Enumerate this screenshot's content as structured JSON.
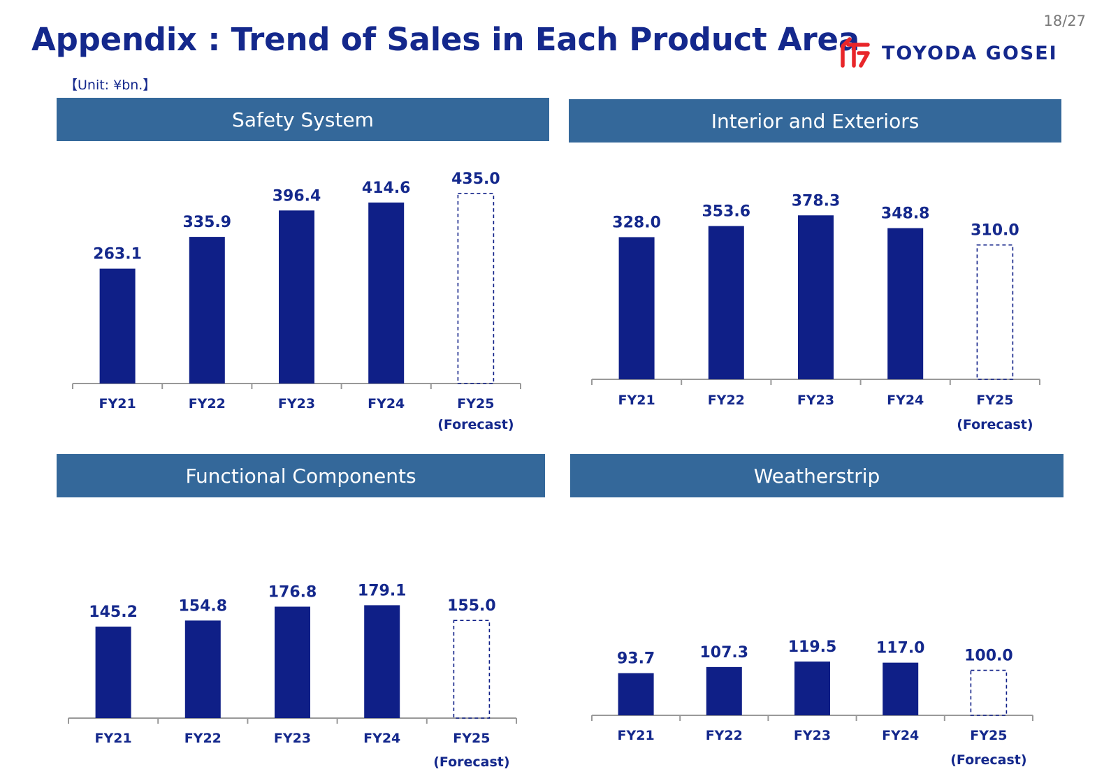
{
  "page": {
    "number": "18/27",
    "title": "Appendix : Trend of Sales in Each Product Area",
    "logo": {
      "text": "TOYODA GOSEI",
      "icon": "toyoda-gosei-logo-icon"
    },
    "unit": "【Unit: ¥bn.】"
  },
  "colors": {
    "bar": "#0f1f87",
    "forecast_border": "#0f1f87",
    "header_bg": "#34689a",
    "label": "#14288c",
    "axis": "#999999"
  },
  "chart_data": [
    {
      "type": "bar",
      "title": "Safety System",
      "categories": [
        "FY21",
        "FY22",
        "FY23",
        "FY24",
        "FY25"
      ],
      "category_sublabels": [
        "",
        "",
        "",
        "",
        "(Forecast)"
      ],
      "values": [
        263.1,
        335.9,
        396.4,
        414.6,
        435.0
      ],
      "value_labels": [
        "263.1",
        "335.9",
        "396.4",
        "414.6",
        "435.0"
      ],
      "forecast": [
        false,
        false,
        false,
        false,
        true
      ]
    },
    {
      "type": "bar",
      "title": "Interior and Exteriors",
      "categories": [
        "FY21",
        "FY22",
        "FY23",
        "FY24",
        "FY25"
      ],
      "category_sublabels": [
        "",
        "",
        "",
        "",
        "(Forecast)"
      ],
      "values": [
        328.0,
        353.6,
        378.3,
        348.8,
        310.0
      ],
      "value_labels": [
        "328.0",
        "353.6",
        "378.3",
        "348.8",
        "310.0"
      ],
      "forecast": [
        false,
        false,
        false,
        false,
        true
      ]
    },
    {
      "type": "bar",
      "title": "Functional Components",
      "categories": [
        "FY21",
        "FY22",
        "FY23",
        "FY24",
        "FY25"
      ],
      "category_sublabels": [
        "",
        "",
        "",
        "",
        "(Forecast)"
      ],
      "values": [
        145.2,
        154.8,
        176.8,
        179.1,
        155.0
      ],
      "value_labels": [
        "145.2",
        "154.8",
        "176.8",
        "179.1",
        "155.0"
      ],
      "forecast": [
        false,
        false,
        false,
        false,
        true
      ]
    },
    {
      "type": "bar",
      "title": "Weatherstrip",
      "categories": [
        "FY21",
        "FY22",
        "FY23",
        "FY24",
        "FY25"
      ],
      "category_sublabels": [
        "",
        "",
        "",
        "",
        "(Forecast)"
      ],
      "values": [
        93.7,
        107.3,
        119.5,
        117.0,
        100.0
      ],
      "value_labels": [
        "93.7",
        "107.3",
        "119.5",
        "117.0",
        "100.0"
      ],
      "forecast": [
        false,
        false,
        false,
        false,
        true
      ]
    }
  ]
}
